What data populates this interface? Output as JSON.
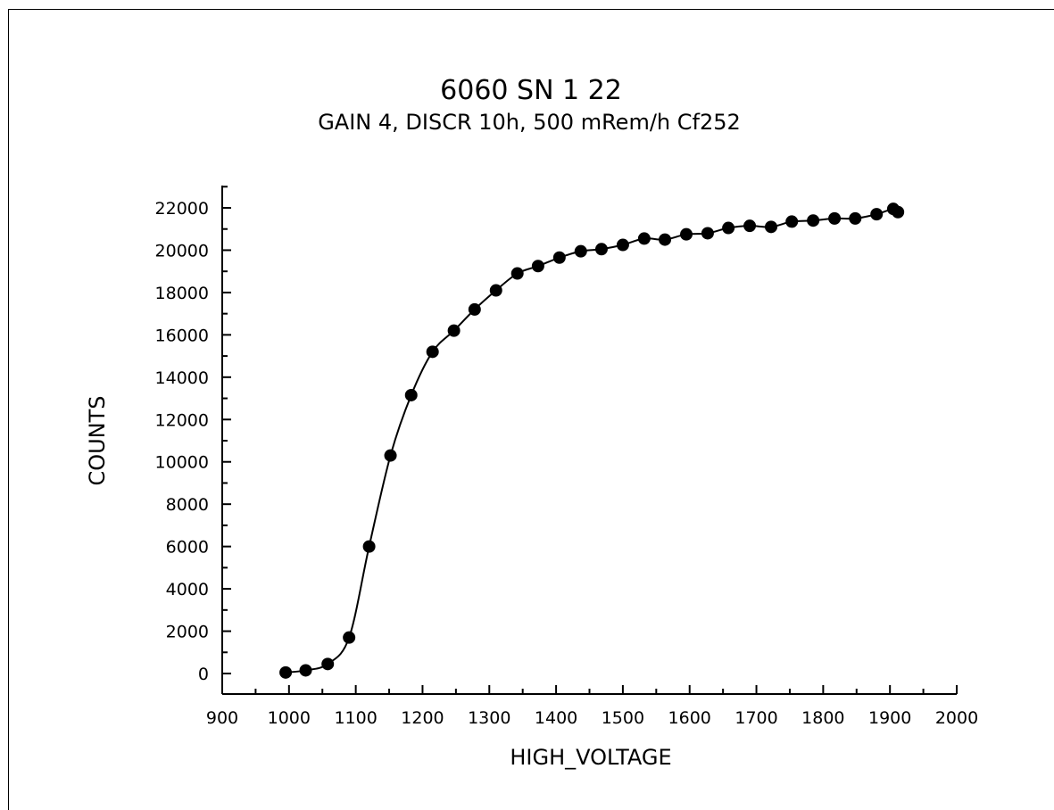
{
  "chart_data": {
    "type": "line",
    "title": "6060 SN 1 22",
    "subtitle": "GAIN 4, DISCR 10h, 500 mRem/h Cf252",
    "xlabel": "HIGH_VOLTAGE",
    "ylabel": "COUNTS",
    "xlim": [
      900,
      2000
    ],
    "ylim": [
      0,
      22000
    ],
    "xticks": [
      900,
      1000,
      1100,
      1200,
      1300,
      1400,
      1500,
      1600,
      1700,
      1800,
      1900,
      2000
    ],
    "yticks": [
      0,
      2000,
      4000,
      6000,
      8000,
      10000,
      12000,
      14000,
      16000,
      18000,
      20000,
      22000
    ],
    "grid": false,
    "colors": {
      "line": "#000000",
      "marker": "#000000"
    },
    "series": [
      {
        "x": [
          995,
          1025,
          1058,
          1090,
          1120,
          1152,
          1183,
          1215,
          1247,
          1278,
          1310,
          1342,
          1373,
          1405,
          1437,
          1468,
          1500,
          1532,
          1563,
          1595,
          1627,
          1658,
          1690,
          1722,
          1753,
          1785,
          1817,
          1848,
          1880,
          1905,
          1912
        ],
        "y": [
          50,
          150,
          450,
          1700,
          6000,
          10300,
          13150,
          15200,
          16200,
          17200,
          18100,
          18900,
          19250,
          19650,
          19950,
          20050,
          20250,
          20550,
          20500,
          20750,
          20800,
          21050,
          21150,
          21100,
          21350,
          21400,
          21500,
          21500,
          21700,
          21950,
          21800
        ]
      }
    ]
  }
}
